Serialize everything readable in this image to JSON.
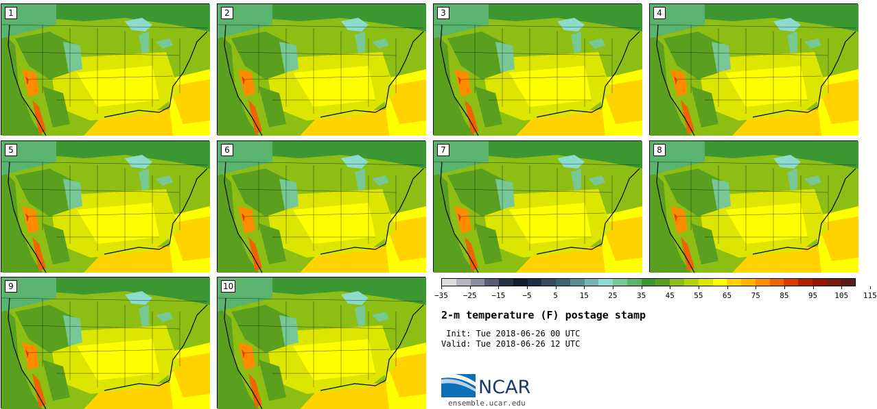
{
  "members": [
    "1",
    "2",
    "3",
    "4",
    "5",
    "6",
    "7",
    "8",
    "9",
    "10"
  ],
  "colorbar": {
    "colors": [
      "#dcdcdc",
      "#b4b4be",
      "#8c8ca0",
      "#5a5a78",
      "#283246",
      "#0f1e32",
      "#1e2d46",
      "#324b5f",
      "#3c6478",
      "#5a8c96",
      "#78b4b4",
      "#8cdccd",
      "#78c896",
      "#5ab46e",
      "#3c9632",
      "#5aa01e",
      "#8cbe14",
      "#b4d20a",
      "#dce600",
      "#ffff00",
      "#ffd200",
      "#ffb400",
      "#ff8c00",
      "#f06400",
      "#dc3c00",
      "#b41e00",
      "#961405",
      "#781e0f",
      "#5a1e14"
    ],
    "tick_labels": [
      "−35",
      "−25",
      "−15",
      "−5",
      "5",
      "15",
      "25",
      "35",
      "45",
      "55",
      "65",
      "75",
      "85",
      "95",
      "105",
      "115"
    ]
  },
  "title": "2-m temperature (F) postage stamp",
  "init": " Init: Tue 2018-06-26 00 UTC",
  "valid": "Valid: Tue 2018-06-26 12 UTC",
  "logo": {
    "text": "NCAR",
    "colors": [
      "#0f6fb4",
      "#1a3a6e"
    ]
  },
  "url": "ensemble.ucar.edu"
}
